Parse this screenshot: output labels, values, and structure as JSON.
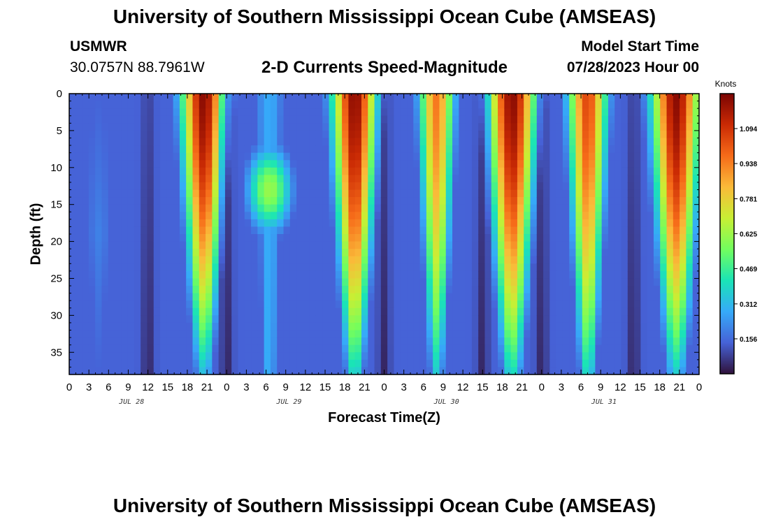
{
  "header": {
    "title": "University of Southern Mississippi Ocean Cube (AMSEAS)",
    "station": "USMWR",
    "coords": "30.0757N  88.7961W",
    "subtitle": "2-D Currents Speed-Magnitude",
    "model_start_label": "Model Start Time",
    "model_start_value": "07/28/2023 Hour 00"
  },
  "footer": {
    "title": "University of Southern Mississippi Ocean Cube (AMSEAS)"
  },
  "colors": {
    "colormap": [
      "#30123b",
      "#4662d7",
      "#36aaf9",
      "#1ae4b6",
      "#72fe5e",
      "#c8ef34",
      "#faba39",
      "#f66b19",
      "#ca2a04",
      "#7a0403"
    ]
  },
  "chart_data": {
    "type": "heatmap",
    "title": "2-D Currents Speed-Magnitude",
    "xlabel": "Forecast Time(Z)",
    "ylabel": "Depth (ft)",
    "x_tick_labels": [
      "0",
      "3",
      "6",
      "9",
      "12",
      "15",
      "18",
      "21",
      "0",
      "3",
      "6",
      "9",
      "12",
      "15",
      "18",
      "21",
      "0",
      "3",
      "6",
      "9",
      "12",
      "15",
      "18",
      "21",
      "0",
      "3",
      "6",
      "9",
      "12",
      "15",
      "18",
      "21",
      "0"
    ],
    "day_labels": [
      {
        "label": "JUL 28",
        "hour": 9.5
      },
      {
        "label": "JUL 29",
        "hour": 33.5
      },
      {
        "label": "JUL 30",
        "hour": 57.5
      },
      {
        "label": "JUL 31",
        "hour": 81.5
      }
    ],
    "xlim_hours": [
      0,
      96
    ],
    "y_ticks": [
      0,
      5,
      10,
      15,
      20,
      25,
      30,
      35
    ],
    "ylim_ft": [
      0,
      38
    ],
    "colorbar": {
      "unit": "Knots",
      "ticks": [
        "0.156",
        "0.312",
        "0.469",
        "0.625",
        "0.781",
        "0.938",
        "1.094"
      ],
      "tick_values": [
        0.156,
        0.312,
        0.469,
        0.625,
        0.781,
        0.938,
        1.094
      ],
      "range": [
        0,
        1.25
      ]
    },
    "columns": 97,
    "rows": 38,
    "speed_peaks": [
      {
        "hour": 4.5,
        "surface": 0.2,
        "bottom": 0.14,
        "width": 3.5,
        "core_depth": 19
      },
      {
        "hour": 20.5,
        "surface": 1.22,
        "bottom": 0.32,
        "width": 3.2
      },
      {
        "hour": 30.0,
        "surface": 0.1,
        "bottom": 0.22,
        "width": 2.0
      },
      {
        "hour": 30.5,
        "surface": 0.28,
        "bottom": 0.3,
        "width": 2.5
      },
      {
        "hour": 30.5,
        "surface": 0.0,
        "bottom": 0.0,
        "width": 3.0,
        "core_depth": 13,
        "core_peak": 0.62,
        "core_width": 3.5,
        "core_spread": 6
      },
      {
        "hour": 43.5,
        "surface": 1.22,
        "bottom": 0.4,
        "width": 3.2
      },
      {
        "hour": 56.0,
        "surface": 0.95,
        "bottom": 0.35,
        "width": 2.5
      },
      {
        "hour": 67.5,
        "surface": 1.22,
        "bottom": 0.4,
        "width": 3.5
      },
      {
        "hour": 79.0,
        "surface": 1.05,
        "bottom": 0.4,
        "width": 2.8
      },
      {
        "hour": 92.5,
        "surface": 1.22,
        "bottom": 0.35,
        "width": 3.5
      }
    ],
    "slack_times_hours": [
      12,
      24,
      48,
      63,
      72,
      86
    ],
    "background_speed": 0.14
  }
}
